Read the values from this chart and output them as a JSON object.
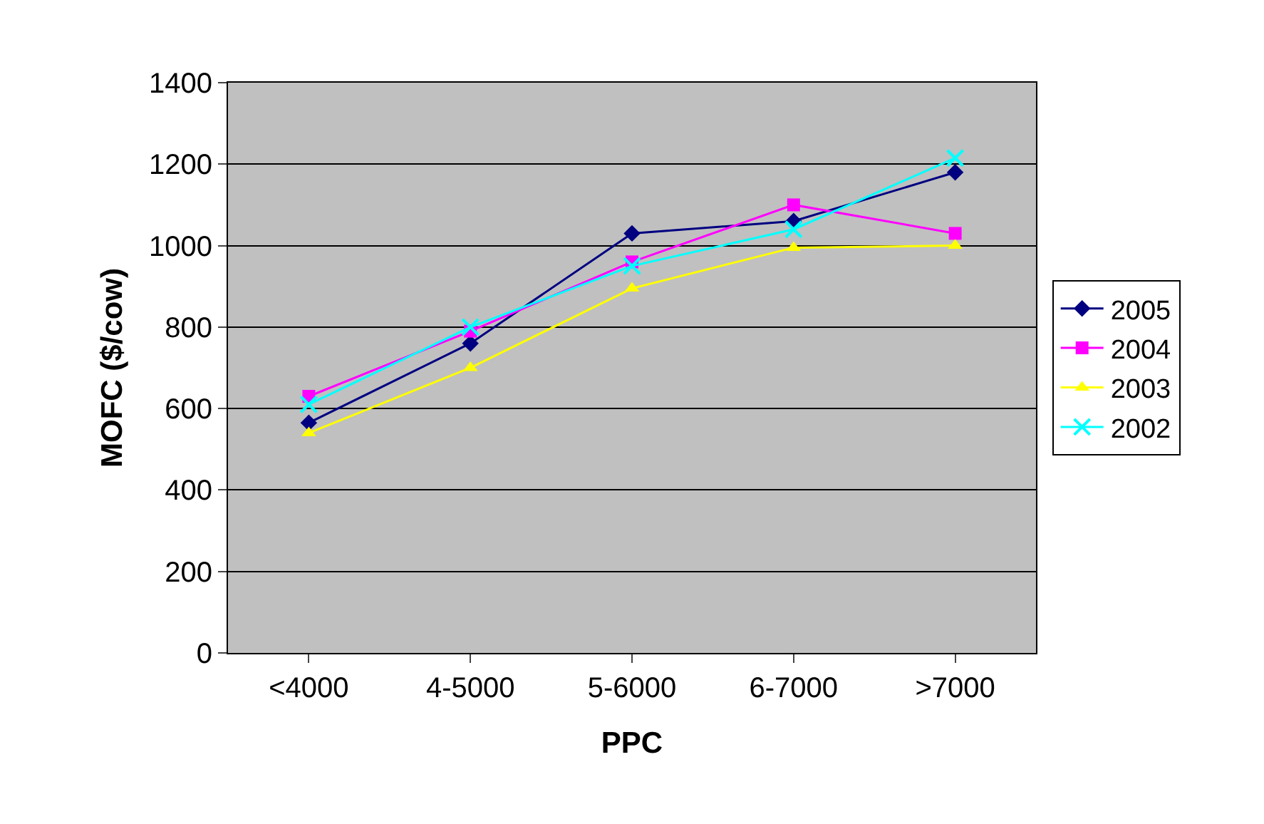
{
  "chart_data": {
    "type": "line",
    "xlabel": "PPC",
    "ylabel": "MOFC ($/cow)",
    "categories": [
      "<4000",
      "4-5000",
      "5-6000",
      "6-7000",
      ">7000"
    ],
    "ylim": [
      0,
      1400
    ],
    "yticks": [
      0,
      200,
      400,
      600,
      800,
      1000,
      1200,
      1400
    ],
    "grid": "y",
    "legend": "right",
    "line_style": "solid",
    "series": [
      {
        "name": "2005",
        "color": "#000080",
        "marker": "diamond",
        "values": [
          565,
          760,
          1030,
          1060,
          1180
        ]
      },
      {
        "name": "2004",
        "color": "#ff00ff",
        "marker": "square",
        "values": [
          630,
          790,
          960,
          1100,
          1030
        ]
      },
      {
        "name": "2003",
        "color": "#ffff00",
        "marker": "triangle",
        "values": [
          540,
          700,
          895,
          995,
          1000
        ]
      },
      {
        "name": "2002",
        "color": "#00ffff",
        "marker": "cross",
        "values": [
          610,
          800,
          950,
          1040,
          1215
        ]
      }
    ]
  }
}
